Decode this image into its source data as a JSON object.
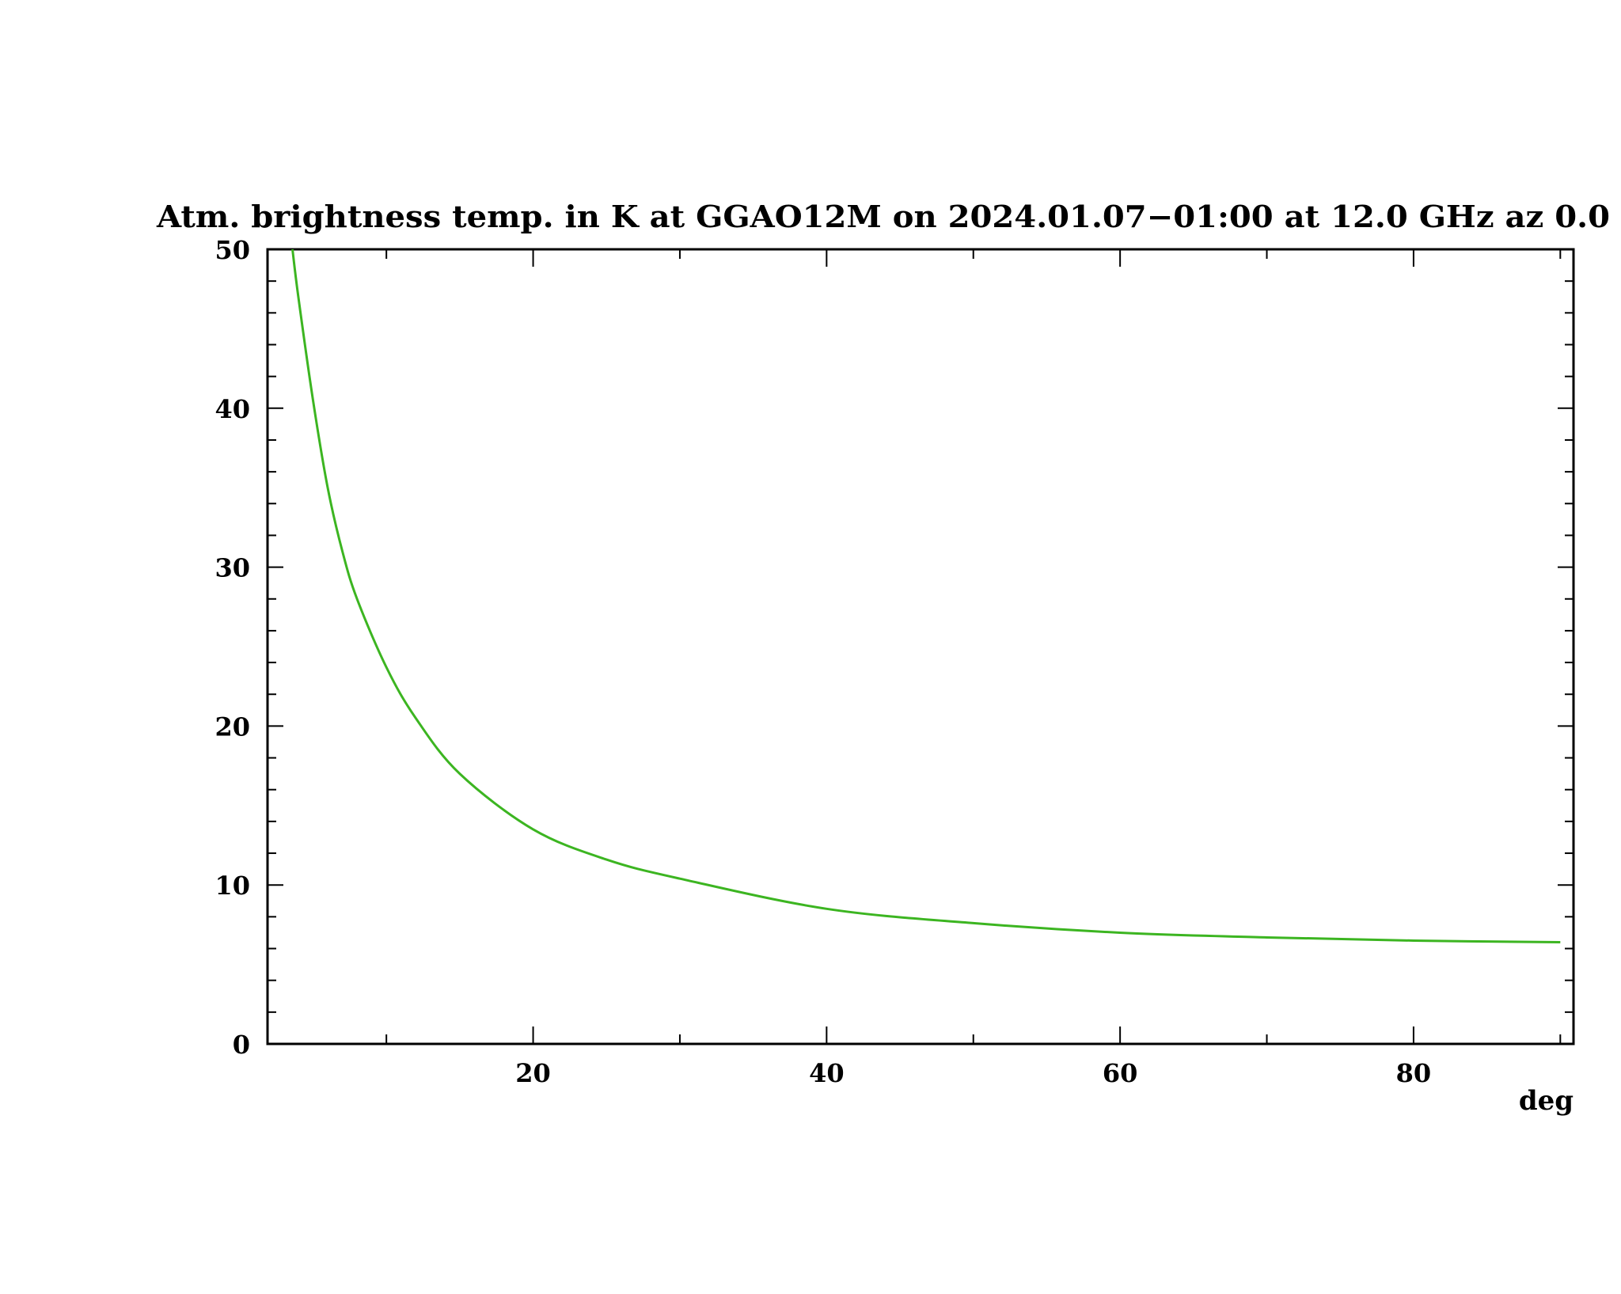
{
  "chart_data": {
    "type": "line",
    "title": "Atm. brightness temp. in K at GGAO12M  on 2024.01.07−01:00 at  12.0 GHz az    0.0",
    "xlabel": "deg",
    "ylabel": "",
    "xlim": [
      1.9,
      90.9
    ],
    "ylim": [
      0,
      50
    ],
    "x_ticks": [
      20,
      40,
      60,
      80
    ],
    "x_minor_ticks": [
      10,
      30,
      50,
      70,
      90
    ],
    "y_ticks": [
      0,
      10,
      20,
      30,
      40,
      50
    ],
    "y_minor_step": 2,
    "grid": false,
    "line_color": "#3cb521",
    "series": [
      {
        "x": [
          3.6,
          4,
          5,
          6,
          7,
          8,
          10,
          12,
          15,
          20,
          25,
          30,
          40,
          50,
          60,
          70,
          80,
          90
        ],
        "y": [
          50,
          47,
          40.5,
          35,
          31,
          28,
          23.7,
          20.5,
          17,
          13.5,
          11.6,
          10.4,
          8.5,
          7.6,
          7.0,
          6.7,
          6.5,
          6.4
        ]
      }
    ]
  }
}
